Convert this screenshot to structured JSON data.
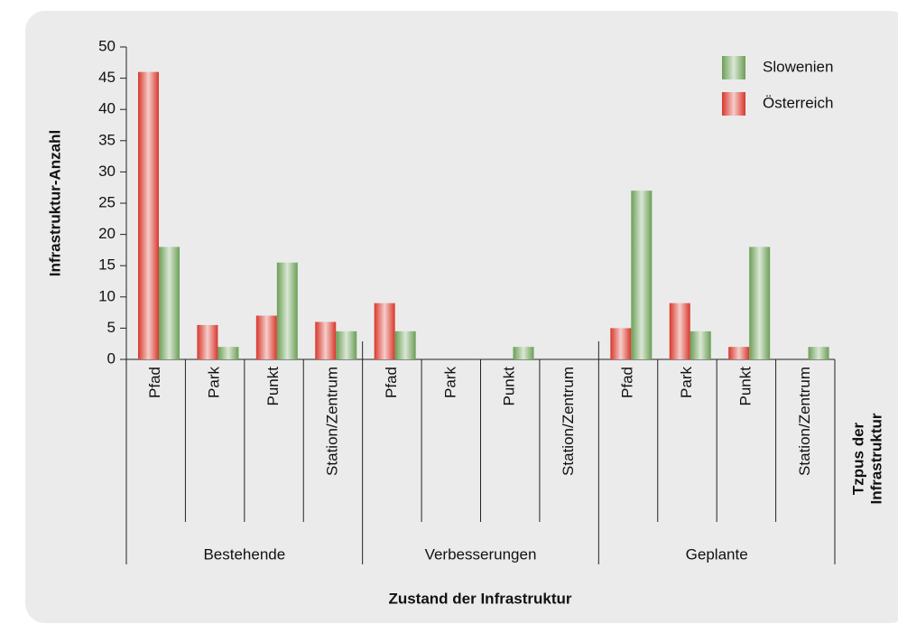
{
  "chart_data": {
    "type": "bar",
    "y_label": "Infrastruktur-Anzahl",
    "x_label": "Zustand der Infrastruktur",
    "x_label_2": [
      "Tzpus der",
      "Infrastruktur"
    ],
    "groups": [
      "Bestehende",
      "Verbesserungen",
      "Geplante"
    ],
    "categories": [
      "Pfad",
      "Park",
      "Punkt",
      "Station/Zentrum",
      "Pfad",
      "Park",
      "Punkt",
      "Station/Zentrum",
      "Pfad",
      "Park",
      "Punkt",
      "Station/Zentrum"
    ],
    "series": [
      {
        "name": "Österreich",
        "color": "#d8372c",
        "values": [
          46,
          5.5,
          7,
          6,
          9,
          0,
          0,
          0,
          5,
          9,
          2,
          0
        ]
      },
      {
        "name": "Slowenien",
        "color": "#6b9f56",
        "values": [
          18,
          2,
          15.5,
          4.5,
          4.5,
          0,
          2,
          0,
          27,
          4.5,
          18,
          2
        ]
      }
    ],
    "ylim": [
      0,
      50
    ],
    "yticks": [
      0,
      5,
      10,
      15,
      20,
      25,
      30,
      35,
      40,
      45,
      50
    ],
    "legend": "top-right"
  }
}
